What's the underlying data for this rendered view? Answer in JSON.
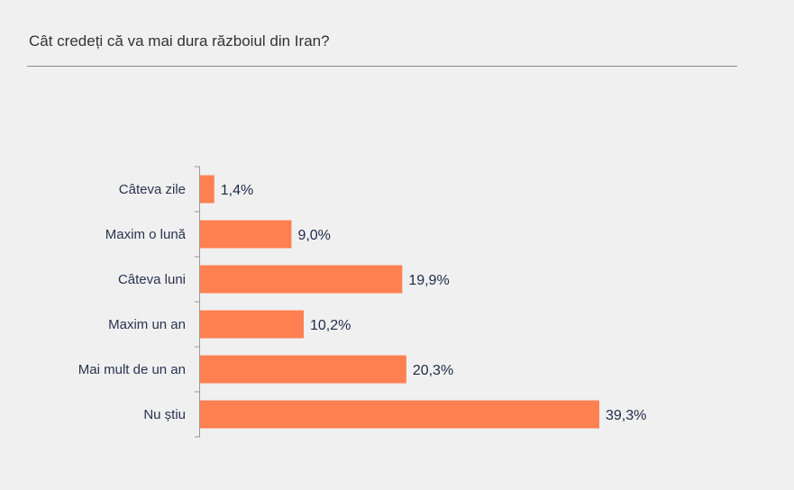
{
  "chart_data": {
    "type": "bar",
    "orientation": "horizontal",
    "title": "Cât credeți că va mai dura războiul din Iran?",
    "categories": [
      "Câteva zile",
      "Maxim o lună",
      "Câteva luni",
      "Maxim un an",
      "Mai mult de un an",
      "Nu știu"
    ],
    "values": [
      1.4,
      9.0,
      19.9,
      10.2,
      20.3,
      39.3
    ],
    "value_labels": [
      "1,4%",
      "9,0%",
      "19,9%",
      "10,2%",
      "20,3%",
      "39,3%"
    ],
    "unit": "%",
    "xlim": [
      0,
      39.3
    ],
    "grid": false,
    "legend": "none",
    "colors": {
      "bar": "#ff8050",
      "axis": "#999999"
    }
  }
}
